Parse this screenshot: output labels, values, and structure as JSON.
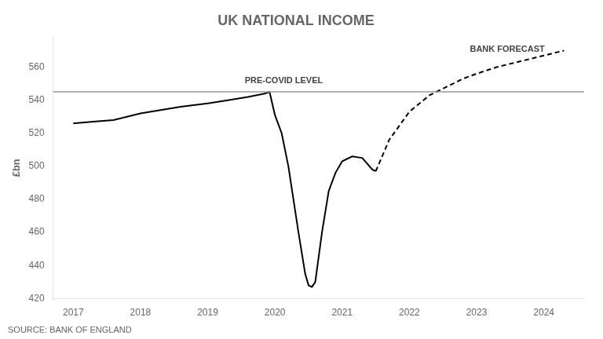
{
  "chart_data": {
    "type": "line",
    "title": "UK NATIONAL INCOME",
    "ylabel": "£bn",
    "source": "SOURCE: BANK OF ENGLAND",
    "series": [
      {
        "x": [
          2017.0,
          2017.3,
          2017.6,
          2018.0,
          2018.3,
          2018.6,
          2019.0,
          2019.3,
          2019.6,
          2019.85,
          2019.92,
          2020.0,
          2020.1,
          2020.2,
          2020.35,
          2020.45,
          2020.5,
          2020.55,
          2020.6,
          2020.7,
          2020.8,
          2020.9,
          2021.0,
          2021.15,
          2021.3,
          2021.45,
          2021.5
        ],
        "values": [
          526,
          527,
          528,
          532,
          534,
          536,
          538,
          540,
          542,
          544,
          545,
          531,
          520,
          500,
          460,
          435,
          428,
          427,
          430,
          460,
          485,
          496,
          503,
          506,
          505,
          498,
          497
        ],
        "color": "#000000",
        "line_style": "solid"
      },
      {
        "x": [
          2021.5,
          2021.7,
          2022.0,
          2022.3,
          2022.6,
          2022.8,
          2023.0,
          2023.3,
          2023.6,
          2023.9,
          2024.1,
          2024.3
        ],
        "values": [
          497,
          516,
          533,
          543,
          549,
          553,
          556,
          560,
          563,
          566,
          568,
          570
        ],
        "color": "#000000",
        "line_style": "dashed"
      }
    ],
    "reference_lines": [
      {
        "y": 545
      }
    ],
    "annotations": [
      {
        "text": "PRE-COVID LEVEL",
        "x": 2019.55,
        "y": 548
      },
      {
        "text": "BANK FORECAST",
        "x": 2022.9,
        "y": 567
      }
    ],
    "xlim": [
      2016.7,
      2024.6
    ],
    "xticks": [
      2017,
      2018,
      2019,
      2020,
      2021,
      2022,
      2023,
      2024
    ],
    "ylim": [
      420,
      578
    ],
    "yticks": [
      420,
      440,
      460,
      480,
      500,
      520,
      540,
      560
    ],
    "grid": false
  }
}
